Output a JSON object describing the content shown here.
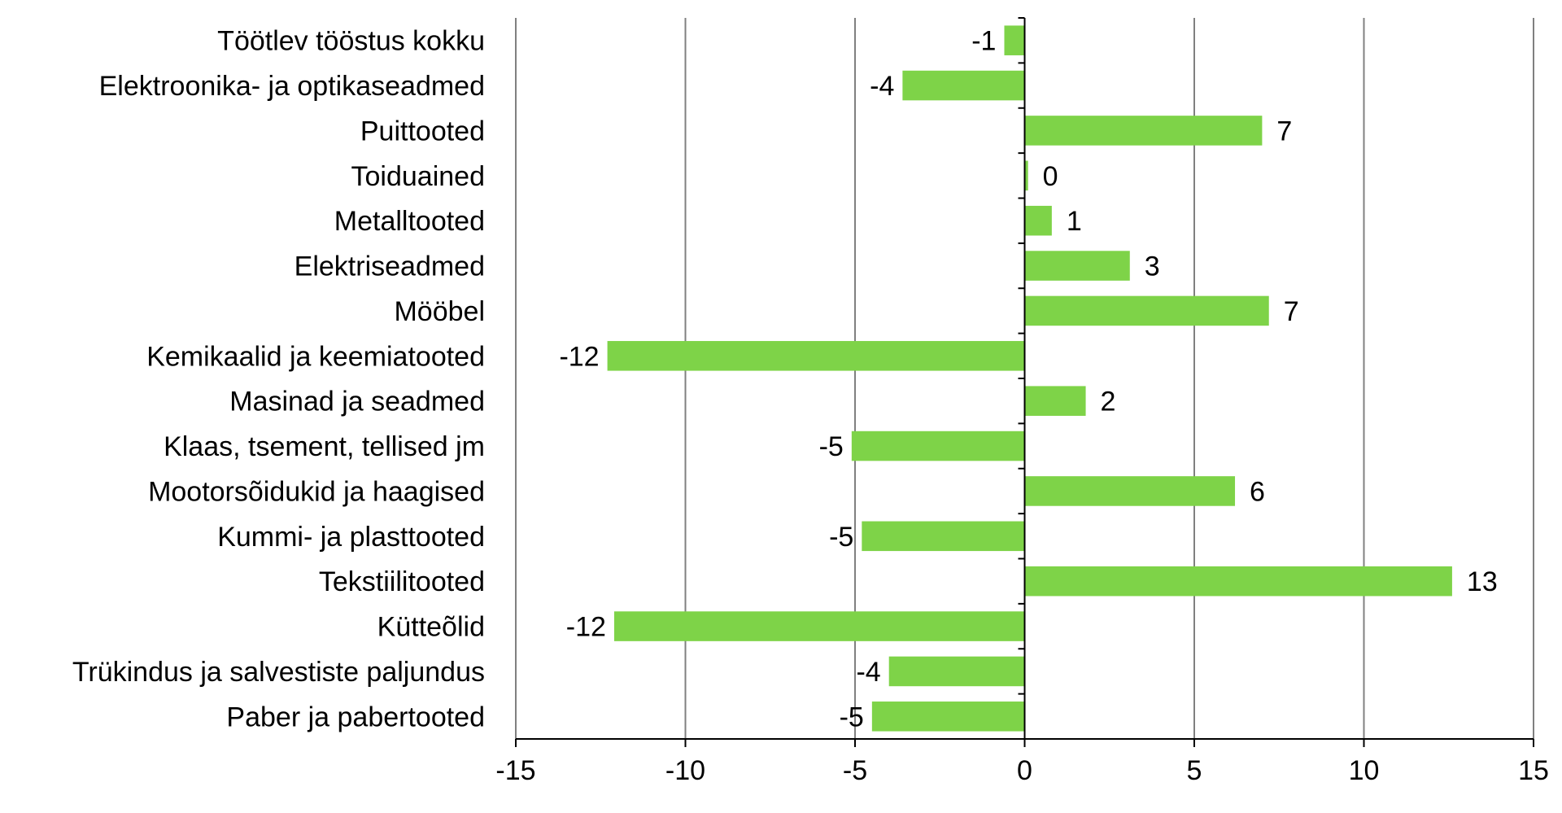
{
  "colors": {
    "bar": "#7ed348",
    "grid": "#808080",
    "axis": "#000000",
    "text": "#000000",
    "background": "#ffffff"
  },
  "chart_data": {
    "type": "bar",
    "orientation": "horizontal",
    "title": "",
    "xlabel": "",
    "ylabel": "",
    "xlim": [
      -15,
      15
    ],
    "x_ticks": [
      -15,
      -10,
      -5,
      0,
      5,
      10,
      15
    ],
    "grid": "vertical",
    "legend": "none",
    "categories": [
      "Töötlev tööstus kokku",
      "Elektroonika- ja optikaseadmed",
      "Puittooted",
      "Toiduained",
      "Metalltooted",
      "Elektriseadmed",
      "Mööbel",
      "Kemikaalid ja keemiatooted",
      "Masinad ja seadmed",
      "Klaas, tsement, tellised jm",
      "Mootorsõidukid ja haagised",
      "Kummi- ja plasttooted",
      "Tekstiilitooted",
      "Kütteõlid",
      "Trükindus ja salvestiste paljundus",
      "Paber ja pabertooted"
    ],
    "values": [
      -0.6,
      -3.6,
      7.0,
      0.1,
      0.8,
      3.1,
      7.2,
      -12.3,
      1.8,
      -5.1,
      6.2,
      -4.8,
      12.6,
      -12.1,
      -4.0,
      -4.5
    ],
    "data_labels": [
      "-1",
      "-4",
      "7",
      "0",
      "1",
      "3",
      "7",
      "-12",
      "2",
      "-5",
      "6",
      "-5",
      "13",
      "-12",
      "-4",
      "-5"
    ]
  }
}
